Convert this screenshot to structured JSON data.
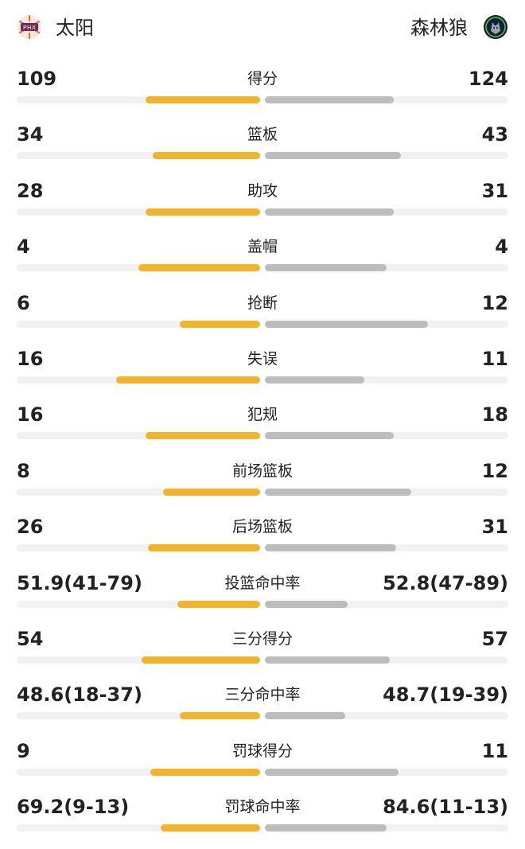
{
  "teams": {
    "home": {
      "name": "太阳",
      "logo_text": "PHX",
      "logo_icon": "suns-logo",
      "color": "#f3b42c"
    },
    "away": {
      "name": "森林狼",
      "logo_icon": "timberwolves-logo",
      "color": "#bdbdbd"
    }
  },
  "stats": [
    {
      "label": "得分",
      "home": "109",
      "away": "124",
      "home_fill": 0.47,
      "away_fill": 0.53
    },
    {
      "label": "篮板",
      "home": "34",
      "away": "43",
      "home_fill": 0.44,
      "away_fill": 0.56
    },
    {
      "label": "助攻",
      "home": "28",
      "away": "31",
      "home_fill": 0.47,
      "away_fill": 0.53
    },
    {
      "label": "盖帽",
      "home": "4",
      "away": "4",
      "home_fill": 0.5,
      "away_fill": 0.5
    },
    {
      "label": "抢断",
      "home": "6",
      "away": "12",
      "home_fill": 0.33,
      "away_fill": 0.67
    },
    {
      "label": "失误",
      "home": "16",
      "away": "11",
      "home_fill": 0.59,
      "away_fill": 0.41
    },
    {
      "label": "犯规",
      "home": "16",
      "away": "18",
      "home_fill": 0.47,
      "away_fill": 0.53
    },
    {
      "label": "前场篮板",
      "home": "8",
      "away": "12",
      "home_fill": 0.4,
      "away_fill": 0.6
    },
    {
      "label": "后场篮板",
      "home": "26",
      "away": "31",
      "home_fill": 0.46,
      "away_fill": 0.54
    },
    {
      "label": "投篮命中率",
      "home": "51.9(41-79)",
      "away": "52.8(47-89)",
      "home_fill": 0.34,
      "away_fill": 0.34
    },
    {
      "label": "三分得分",
      "home": "54",
      "away": "57",
      "home_fill": 0.486,
      "away_fill": 0.514
    },
    {
      "label": "三分命中率",
      "home": "48.6(18-37)",
      "away": "48.7(19-39)",
      "home_fill": 0.33,
      "away_fill": 0.33
    },
    {
      "label": "罚球得分",
      "home": "9",
      "away": "11",
      "home_fill": 0.45,
      "away_fill": 0.55
    },
    {
      "label": "罚球命中率",
      "home": "69.2(9-13)",
      "away": "84.6(11-13)",
      "home_fill": 0.41,
      "away_fill": 0.5
    }
  ]
}
